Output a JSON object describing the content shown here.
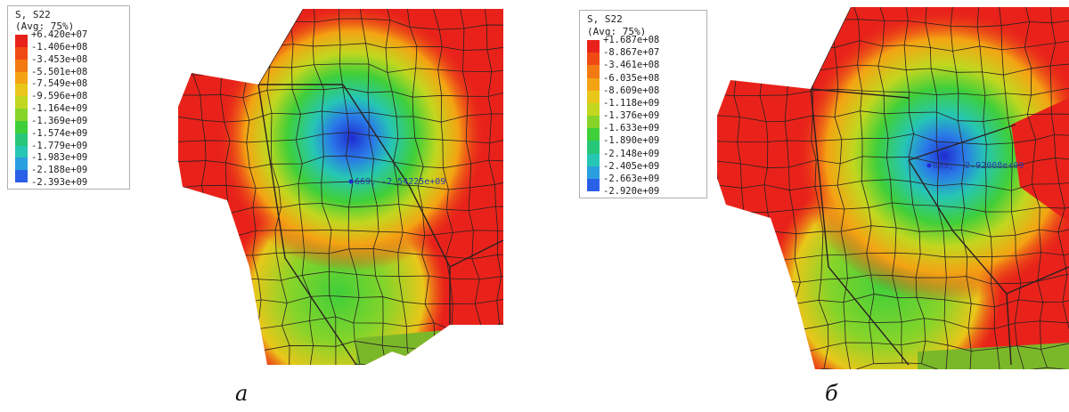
{
  "panels": [
    {
      "id": "a",
      "caption": "а",
      "legend": {
        "title": "S, S22",
        "subtitle": "(Avg: 75%)",
        "levels": [
          "+6.420e+07",
          "-1.406e+08",
          "-3.453e+08",
          "-5.501e+08",
          "-7.549e+08",
          "-9.596e+08",
          "-1.164e+09",
          "-1.369e+09",
          "-1.574e+09",
          "-1.779e+09",
          "-1.983e+09",
          "-2.188e+09",
          "-2.393e+09"
        ]
      },
      "probe_label": "669,  -2.54225e+09"
    },
    {
      "id": "b",
      "caption": "б",
      "legend": {
        "title": "S, S22",
        "subtitle": "(Avg: 75%)",
        "levels": [
          "+1.687e+08",
          "-8.867e+07",
          "-3.461e+08",
          "-6.035e+08",
          "-8.609e+08",
          "-1.118e+09",
          "-1.376e+09",
          "-1.633e+09",
          "-1.890e+09",
          "-2.148e+09",
          "-2.405e+09",
          "-2.663e+09",
          "-2.920e+09"
        ]
      },
      "probe_label": "669,  -2.92008e+09"
    }
  ],
  "colors": {
    "scale": [
      "#e8221a",
      "#f04a14",
      "#f37a12",
      "#f4a313",
      "#e9c71a",
      "#c2d71f",
      "#86d42a",
      "#3fcf3a",
      "#27c77a",
      "#26c6b4",
      "#2a9fe0",
      "#2a5fe8",
      "#1f2bd0"
    ],
    "mesh": "#2a2020"
  }
}
